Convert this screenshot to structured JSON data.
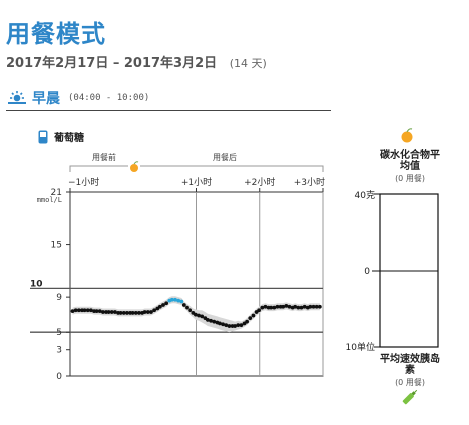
{
  "header": {
    "title": "用餐模式",
    "date_range": "2017年2月17日 – 2017年3月2日",
    "days": "(14 天)"
  },
  "period": {
    "name": "早晨",
    "time": "(04:00 - 10:00)",
    "icon": "sunrise-icon"
  },
  "glucose": {
    "label": "葡萄糖",
    "icon": "meter-icon"
  },
  "meal_labels": {
    "before": "用餐前",
    "after": "用餐后",
    "icon": "apple-icon"
  },
  "colors": {
    "target_band": "#555555",
    "high_points": "#2aa6d9",
    "points": "#111111",
    "range_band": "#d8d8d8",
    "apple": "#f5a623",
    "pen": "#7cc242"
  },
  "chart_data": {
    "type": "scatter",
    "title": "",
    "xlabel": "",
    "ylabel": "mmol/L",
    "x_ticks": [
      "−1小时",
      "+1小时",
      "+2小时",
      "+3小时"
    ],
    "x_tick_values": [
      -1,
      1,
      2,
      3
    ],
    "y_ticks": [
      0,
      3,
      5,
      9,
      15,
      21
    ],
    "y_special_labels": [
      10
    ],
    "ylim": [
      0,
      21
    ],
    "xlim": [
      -1,
      3
    ],
    "target_range": [
      5,
      10
    ],
    "unit": "mmol/L",
    "series": [
      {
        "x": [
          -0.96,
          -0.91,
          -0.86,
          -0.81,
          -0.77,
          -0.72,
          -0.67,
          -0.62,
          -0.58,
          -0.53,
          -0.48,
          -0.43,
          -0.39,
          -0.34,
          -0.29,
          -0.24,
          -0.2,
          -0.15,
          -0.1,
          -0.05,
          -0.01,
          0.04,
          0.09,
          0.14,
          0.18,
          0.23,
          0.28,
          0.33,
          0.38,
          0.42,
          0.47,
          0.52,
          0.57,
          0.61,
          0.66,
          0.71,
          0.76,
          0.8,
          0.85,
          0.9,
          0.95,
          0.99,
          1.04,
          1.09,
          1.14,
          1.18,
          1.23,
          1.28,
          1.33,
          1.37,
          1.42,
          1.47,
          1.52,
          1.57,
          1.61,
          1.66,
          1.71,
          1.76,
          1.8,
          1.85,
          1.9,
          1.95,
          1.99,
          2.04,
          2.09,
          2.14,
          2.18,
          2.23,
          2.28,
          2.33,
          2.37,
          2.42,
          2.47,
          2.52,
          2.56,
          2.61,
          2.66,
          2.71,
          2.76,
          2.8,
          2.85,
          2.9,
          2.95
        ],
        "y": [
          7.4,
          7.5,
          7.5,
          7.5,
          7.5,
          7.5,
          7.5,
          7.4,
          7.4,
          7.4,
          7.3,
          7.3,
          7.3,
          7.3,
          7.3,
          7.2,
          7.2,
          7.2,
          7.2,
          7.2,
          7.2,
          7.2,
          7.2,
          7.2,
          7.3,
          7.3,
          7.3,
          7.5,
          7.7,
          7.9,
          8.1,
          8.3,
          8.6,
          8.7,
          8.7,
          8.6,
          8.5,
          8.1,
          7.8,
          7.5,
          7.2,
          7.0,
          6.9,
          6.8,
          6.6,
          6.4,
          6.3,
          6.2,
          6.1,
          6.0,
          5.9,
          5.8,
          5.7,
          5.7,
          5.7,
          5.8,
          5.8,
          6.0,
          6.2,
          6.6,
          6.9,
          7.3,
          7.5,
          7.8,
          7.9,
          7.8,
          7.8,
          7.8,
          7.9,
          7.9,
          7.9,
          8.0,
          7.9,
          7.8,
          7.9,
          7.8,
          7.8,
          7.9,
          7.8,
          7.9,
          7.9,
          7.9,
          7.9
        ],
        "band_low": [
          7.0,
          7.1,
          7.1,
          7.1,
          7.1,
          7.1,
          7.1,
          7.0,
          7.0,
          7.0,
          6.9,
          6.9,
          6.9,
          6.9,
          6.9,
          6.8,
          6.8,
          6.8,
          6.8,
          6.8,
          6.8,
          6.8,
          6.8,
          6.8,
          6.9,
          6.9,
          6.9,
          7.1,
          7.3,
          7.5,
          7.7,
          7.9,
          8.2,
          8.3,
          8.3,
          8.2,
          8.1,
          7.7,
          7.4,
          7.0,
          6.7,
          6.4,
          6.3,
          6.1,
          5.9,
          5.7,
          5.6,
          5.5,
          5.4,
          5.3,
          5.2,
          5.1,
          5.0,
          5.1,
          5.2,
          5.3,
          5.4,
          5.6,
          5.8,
          6.2,
          6.5,
          6.9,
          7.1,
          7.4,
          7.5,
          7.4,
          7.4,
          7.4,
          7.5,
          7.5,
          7.5,
          7.6,
          7.5,
          7.4,
          7.5,
          7.4,
          7.4,
          7.5,
          7.4,
          7.5,
          7.5,
          7.5,
          7.5
        ],
        "band_high": [
          7.8,
          7.9,
          7.9,
          7.9,
          7.9,
          7.9,
          7.9,
          7.8,
          7.8,
          7.8,
          7.7,
          7.7,
          7.7,
          7.7,
          7.7,
          7.6,
          7.6,
          7.6,
          7.6,
          7.6,
          7.6,
          7.6,
          7.6,
          7.6,
          7.7,
          7.7,
          7.7,
          7.9,
          8.1,
          8.3,
          8.5,
          8.7,
          9.0,
          9.1,
          9.1,
          9.0,
          8.9,
          8.5,
          8.2,
          8.0,
          7.7,
          7.6,
          7.5,
          7.5,
          7.3,
          7.1,
          7.0,
          6.9,
          6.8,
          6.7,
          6.6,
          6.5,
          6.4,
          6.3,
          6.2,
          6.3,
          6.2,
          6.4,
          6.6,
          7.0,
          7.3,
          7.7,
          7.9,
          8.2,
          8.3,
          8.2,
          8.2,
          8.2,
          8.3,
          8.3,
          8.3,
          8.4,
          8.3,
          8.2,
          8.3,
          8.2,
          8.2,
          8.3,
          8.2,
          8.3,
          8.3,
          8.3,
          8.3
        ]
      }
    ],
    "high_threshold": 8.5
  },
  "carbs": {
    "title_line1": "碳水化合物平",
    "title_line2": "均值",
    "sub": "(0 用餐)",
    "top_label": "40克",
    "mid_label": "0",
    "bottom_label": "10单位",
    "icon": "apple-icon"
  },
  "insulin": {
    "title_line1": "平均速效胰岛",
    "title_line2": "素",
    "sub": "(0 用餐)",
    "icon": "insulin-pen-icon"
  }
}
